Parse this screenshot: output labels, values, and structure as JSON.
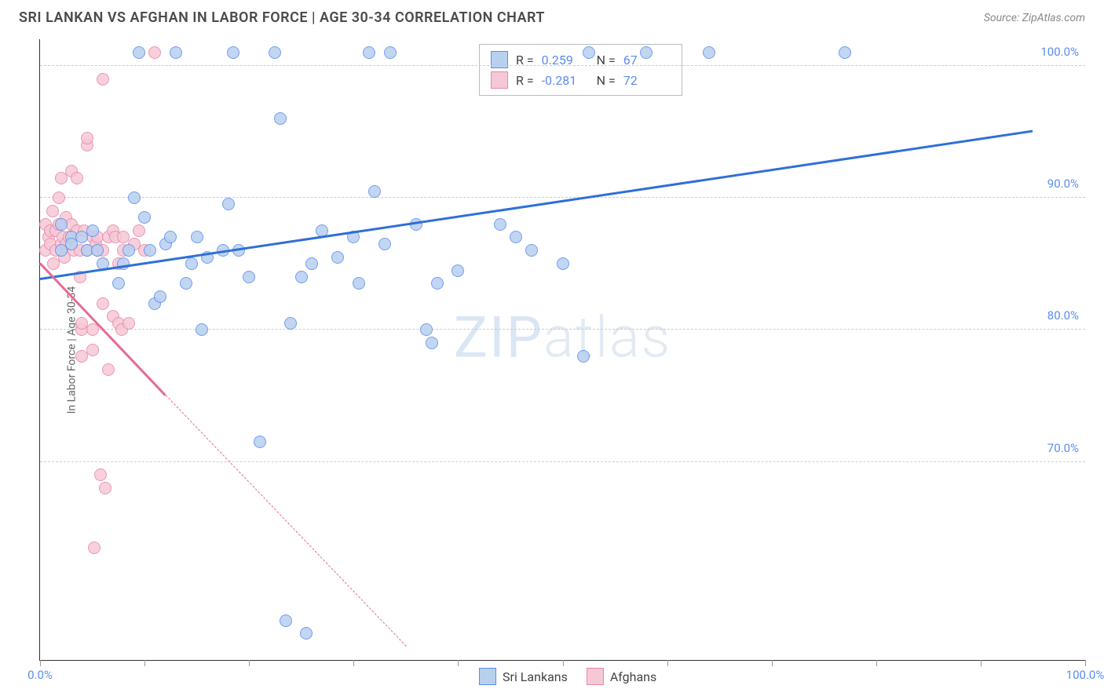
{
  "header": {
    "title": "SRI LANKAN VS AFGHAN IN LABOR FORCE | AGE 30-34 CORRELATION CHART",
    "source": "Source: ZipAtlas.com"
  },
  "chart": {
    "type": "scatter",
    "y_axis_label": "In Labor Force | Age 30-34",
    "xlim": [
      0,
      100
    ],
    "ylim": [
      55,
      102
    ],
    "x_ticks": [
      0,
      10,
      20,
      30,
      40,
      50,
      60,
      70,
      80,
      90,
      100
    ],
    "x_tick_labels_shown": {
      "0": "0.0%",
      "100": "100.0%"
    },
    "y_grid": [
      70,
      80,
      90,
      100
    ],
    "y_tick_labels": {
      "70": "70.0%",
      "80": "80.0%",
      "90": "90.0%",
      "100": "100.0%"
    },
    "grid_color": "#cccccc",
    "background_color": "#ffffff",
    "axis_color": "#333333",
    "tick_label_color": "#5b8def",
    "point_radius": 8,
    "series": {
      "sri_lankans": {
        "label": "Sri Lankans",
        "fill": "#b8d0ef",
        "stroke": "#5b8def",
        "trend_color": "#2f6fd8",
        "R": "0.259",
        "N": "67",
        "trend": {
          "x1": 0,
          "y1": 83.8,
          "x2": 95,
          "y2": 95.0
        },
        "points": [
          [
            2,
            86
          ],
          [
            2,
            88
          ],
          [
            3,
            87
          ],
          [
            3,
            86.5
          ],
          [
            4,
            87
          ],
          [
            4.5,
            86
          ],
          [
            5,
            87.5
          ],
          [
            5.5,
            86
          ],
          [
            6,
            85
          ],
          [
            7.5,
            83.5
          ],
          [
            8,
            85
          ],
          [
            8.5,
            86
          ],
          [
            9,
            90
          ],
          [
            9.5,
            101
          ],
          [
            10,
            88.5
          ],
          [
            10.5,
            86
          ],
          [
            11,
            82
          ],
          [
            11.5,
            82.5
          ],
          [
            12,
            86.5
          ],
          [
            12.5,
            87
          ],
          [
            13,
            101
          ],
          [
            14,
            83.5
          ],
          [
            14.5,
            85
          ],
          [
            15,
            87
          ],
          [
            15.5,
            80
          ],
          [
            16,
            85.5
          ],
          [
            17.5,
            86
          ],
          [
            18,
            89.5
          ],
          [
            18.5,
            101
          ],
          [
            19,
            86
          ],
          [
            20,
            84
          ],
          [
            21,
            71.5
          ],
          [
            22.5,
            101
          ],
          [
            23,
            96
          ],
          [
            23.5,
            58
          ],
          [
            24,
            80.5
          ],
          [
            25,
            84
          ],
          [
            25.5,
            57
          ],
          [
            26,
            85
          ],
          [
            27,
            87.5
          ],
          [
            28.5,
            85.5
          ],
          [
            30,
            87
          ],
          [
            30.5,
            83.5
          ],
          [
            31.5,
            101
          ],
          [
            32,
            90.5
          ],
          [
            33,
            86.5
          ],
          [
            33.5,
            101
          ],
          [
            36,
            88
          ],
          [
            37,
            80
          ],
          [
            37.5,
            79
          ],
          [
            38,
            83.5
          ],
          [
            40,
            84.5
          ],
          [
            44,
            88
          ],
          [
            45.5,
            87
          ],
          [
            47,
            86
          ],
          [
            50,
            85
          ],
          [
            52,
            78
          ],
          [
            52.5,
            101
          ],
          [
            58,
            101
          ],
          [
            64,
            101
          ],
          [
            77,
            101
          ]
        ]
      },
      "afghans": {
        "label": "Afghans",
        "fill": "#f6c8d5",
        "stroke": "#e986a8",
        "trend_color": "#e56b95",
        "R": "-0.281",
        "N": "72",
        "trend_solid": {
          "x1": 0,
          "y1": 85.0,
          "x2": 12,
          "y2": 75.0
        },
        "trend_dash": {
          "x1": 12,
          "y1": 75.0,
          "x2": 35,
          "y2": 56.0
        },
        "points": [
          [
            0.5,
            86
          ],
          [
            0.5,
            88
          ],
          [
            0.8,
            87
          ],
          [
            1,
            87.5
          ],
          [
            1,
            86.5
          ],
          [
            1.2,
            89
          ],
          [
            1.3,
            85
          ],
          [
            1.5,
            87.5
          ],
          [
            1.5,
            86
          ],
          [
            1.8,
            88
          ],
          [
            1.8,
            90
          ],
          [
            2,
            91.5
          ],
          [
            2,
            86.5
          ],
          [
            2.2,
            87
          ],
          [
            2.3,
            85.5
          ],
          [
            2.5,
            86.5
          ],
          [
            2.5,
            88.5
          ],
          [
            2.8,
            87
          ],
          [
            3,
            92
          ],
          [
            3,
            88
          ],
          [
            3.2,
            86
          ],
          [
            3.5,
            87.5
          ],
          [
            3.5,
            91.5
          ],
          [
            3.8,
            86
          ],
          [
            3.8,
            84
          ],
          [
            4,
            80
          ],
          [
            4,
            80.5
          ],
          [
            4,
            78
          ],
          [
            4.2,
            87.5
          ],
          [
            4.5,
            86
          ],
          [
            4.5,
            94
          ],
          [
            4.5,
            94.5
          ],
          [
            5,
            87
          ],
          [
            5,
            80
          ],
          [
            5,
            78.5
          ],
          [
            5.2,
            63.5
          ],
          [
            5.3,
            86.5
          ],
          [
            5.5,
            87
          ],
          [
            5.5,
            86
          ],
          [
            5.8,
            69
          ],
          [
            6,
            86
          ],
          [
            6,
            99
          ],
          [
            6,
            82
          ],
          [
            6.2,
            68
          ],
          [
            6.5,
            87
          ],
          [
            6.5,
            77
          ],
          [
            7,
            87.5
          ],
          [
            7,
            81
          ],
          [
            7.2,
            87
          ],
          [
            7.5,
            85
          ],
          [
            7.5,
            80.5
          ],
          [
            7.8,
            80
          ],
          [
            8,
            86
          ],
          [
            8,
            87
          ],
          [
            8.5,
            80.5
          ],
          [
            9,
            86.5
          ],
          [
            9.5,
            87.5
          ],
          [
            10,
            86
          ],
          [
            11,
            101
          ]
        ]
      }
    },
    "legend_top": {
      "rows": [
        {
          "swatch_fill": "#b8d0ef",
          "swatch_stroke": "#5b8def",
          "r_label": "R =",
          "r_val": "0.259",
          "n_label": "N =",
          "n_val": "67"
        },
        {
          "swatch_fill": "#f6c8d5",
          "swatch_stroke": "#e986a8",
          "r_label": "R =",
          "r_val": "-0.281",
          "n_label": "N =",
          "n_val": "72"
        }
      ]
    },
    "watermark": {
      "pre": "ZIP",
      "post": "atlas"
    }
  }
}
